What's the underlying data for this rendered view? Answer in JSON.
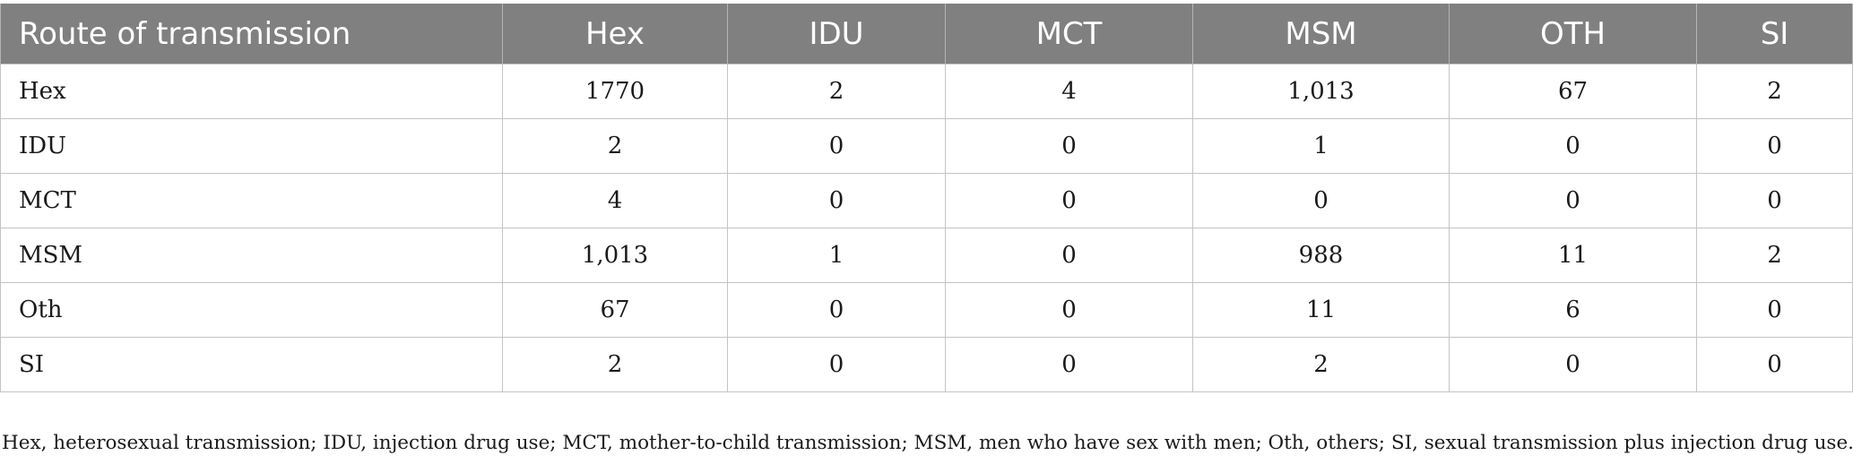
{
  "table": {
    "headers": [
      "Route of transmission",
      "Hex",
      "IDU",
      "MCT",
      "MSM",
      "OTH",
      "SI"
    ],
    "rows": [
      [
        "Hex",
        "1770",
        "2",
        "4",
        "1,013",
        "67",
        "2"
      ],
      [
        "IDU",
        "2",
        "0",
        "0",
        "1",
        "0",
        "0"
      ],
      [
        "MCT",
        "4",
        "0",
        "0",
        "0",
        "0",
        "0"
      ],
      [
        "MSM",
        "1,013",
        "1",
        "0",
        "988",
        "11",
        "2"
      ],
      [
        "Oth",
        "67",
        "0",
        "0",
        "11",
        "6",
        "0"
      ],
      [
        "SI",
        "2",
        "0",
        "0",
        "2",
        "0",
        "0"
      ]
    ]
  },
  "footnote": "Hex, heterosexual transmission; IDU, injection drug use; MCT, mother-to-child transmission; MSM, men who have sex with men; Oth, others; SI, sexual transmission plus injection drug use.",
  "colors": {
    "header_bg": "#808080",
    "header_text": "#ffffff",
    "grid": "#c4c4c4"
  }
}
